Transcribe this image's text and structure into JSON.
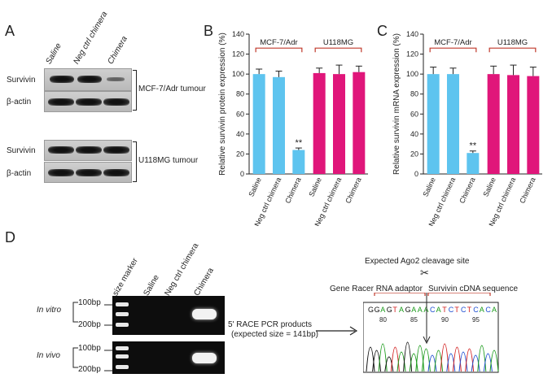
{
  "panels": {
    "a": "A",
    "b": "B",
    "c": "C",
    "d": "D"
  },
  "panel_a": {
    "lanes": [
      "Saline",
      "Neg ctrl chimera",
      "Chimera"
    ],
    "rows": [
      "Survivin",
      "β-actin",
      "Survivin",
      "β-actin"
    ],
    "groups": [
      "MCF-7/Adr tumour",
      "U118MG tumour"
    ]
  },
  "colors": {
    "mcf": "#5ec4ef",
    "u118": "#e0167a",
    "bracket": "#c0392b"
  },
  "chart_data": [
    {
      "type": "bar",
      "ylabel": "Relative survivin protein expression (%)",
      "ylim": [
        0,
        140
      ],
      "yticks": [
        0,
        20,
        40,
        60,
        80,
        100,
        120,
        140
      ],
      "categories": [
        "Saline",
        "Neg ctrl chimera",
        "Chimera",
        "Saline",
        "Neg ctrl chimera",
        "Chimera"
      ],
      "groups": [
        "MCF-7/Adr",
        "U118MG"
      ],
      "values": [
        100,
        97,
        24,
        101,
        100,
        102
      ],
      "errors": [
        5,
        6,
        2,
        5,
        9,
        6
      ],
      "annotation": "**"
    },
    {
      "type": "bar",
      "ylabel": "Relative survivin mRNA expression (%)",
      "ylim": [
        0,
        140
      ],
      "yticks": [
        0,
        20,
        40,
        60,
        80,
        100,
        120,
        140
      ],
      "categories": [
        "Saline",
        "Neg ctrl chimera",
        "Chimera",
        "Saline",
        "Neg ctrl chimera",
        "Chimera"
      ],
      "groups": [
        "MCF-7/Adr",
        "U118MG"
      ],
      "values": [
        100,
        100,
        21,
        100,
        99,
        98
      ],
      "errors": [
        7,
        6,
        2,
        8,
        10,
        9
      ],
      "annotation": "**"
    }
  ],
  "panel_d": {
    "lanes": [
      "size marker",
      "Saline",
      "Neg ctrl chimera",
      "Chimera"
    ],
    "rows": [
      "In vitro",
      "In vivo"
    ],
    "markers": [
      "100bp",
      "200bp"
    ],
    "race_text_1": "5' RACE PCR products",
    "race_text_2": "(expected size = 141bp)",
    "cleavage": "Expected Ago2 cleavage site",
    "adaptor": "Gene Racer RNA adaptor",
    "cdna": "Survivin cDNA sequence",
    "sequence": [
      "G",
      "G",
      "A",
      "G",
      "T",
      "A",
      "G",
      "A",
      "A",
      "A",
      "C",
      "A",
      "T",
      "C",
      "T",
      "C",
      "T",
      "C",
      "A",
      "C",
      "A"
    ],
    "positions": [
      "80",
      "85",
      "90",
      "95"
    ],
    "scissors": "✂"
  }
}
